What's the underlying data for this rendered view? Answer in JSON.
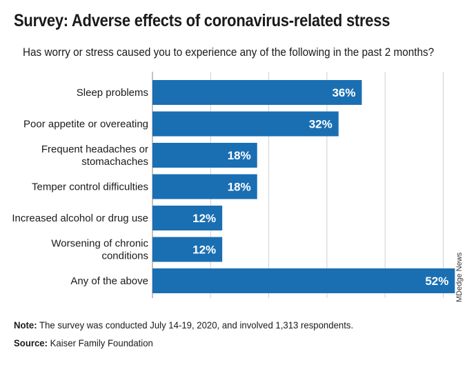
{
  "title": "Survey: Adverse effects of coronavirus-related stress",
  "subtitle": "Has worry or stress caused you to experience any of the following in the past 2 months?",
  "credit": "MDedge News",
  "note": {
    "label": "Note:",
    "text": " The survey was conducted July 14-19, 2020, and involved 1,313 respondents."
  },
  "source": {
    "label": "Source:",
    "text": " Kaiser Family Foundation"
  },
  "colors": {
    "bar": "#1a6fb3",
    "grid": "#cfcfcf",
    "axis": "#999999"
  },
  "chart_data": {
    "type": "bar",
    "orientation": "horizontal",
    "categories": [
      [
        "Sleep problems"
      ],
      [
        "Poor appetite or overeating"
      ],
      [
        "Frequent headaches or",
        "stomachaches"
      ],
      [
        "Temper control difficulties"
      ],
      [
        "Increased alcohol or drug use"
      ],
      [
        "Worsening of chronic",
        "conditions"
      ],
      [
        "Any of the above"
      ]
    ],
    "values": [
      36,
      32,
      18,
      18,
      12,
      12,
      52
    ],
    "value_labels": [
      "36%",
      "32%",
      "18%",
      "18%",
      "12%",
      "12%",
      "52%"
    ],
    "xlim": [
      0,
      52
    ],
    "grid": true,
    "legend": "none"
  }
}
